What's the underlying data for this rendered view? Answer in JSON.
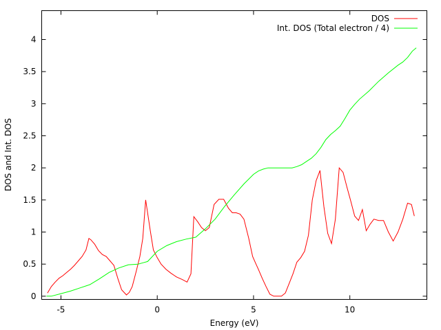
{
  "chart_data": {
    "type": "line",
    "xlabel": "Energy (eV)",
    "ylabel": "DOS and Int. DOS",
    "xlim": [
      -6,
      14
    ],
    "ylim": [
      -0.05,
      4.45
    ],
    "xticks": [
      -5,
      0,
      5,
      10
    ],
    "yticks": [
      0,
      0.5,
      1,
      1.5,
      2,
      2.5,
      3,
      3.5,
      4
    ],
    "xtick_labels": [
      "-5",
      "0",
      "5",
      "10"
    ],
    "ytick_labels": [
      "0",
      "0.5",
      "1",
      "1.5",
      "2",
      "2.5",
      "3",
      "3.5",
      "4"
    ],
    "grid": false,
    "legend_position": "top-right",
    "series": [
      {
        "name": "DOS",
        "color": "#ff0000",
        "x": [
          -5.7,
          -5.5,
          -5.3,
          -5.1,
          -4.9,
          -4.7,
          -4.5,
          -4.3,
          -4.1,
          -3.9,
          -3.7,
          -3.55,
          -3.45,
          -3.25,
          -3.05,
          -2.85,
          -2.65,
          -2.45,
          -2.25,
          -2.05,
          -1.85,
          -1.6,
          -1.45,
          -1.3,
          -1.1,
          -0.9,
          -0.75,
          -0.6,
          -0.55,
          -0.45,
          -0.35,
          -0.2,
          0.0,
          0.2,
          0.45,
          0.7,
          1.0,
          1.3,
          1.55,
          1.75,
          1.9,
          2.1,
          2.3,
          2.5,
          2.7,
          2.95,
          3.2,
          3.45,
          3.7,
          3.9,
          4.1,
          4.3,
          4.5,
          4.75,
          4.95,
          5.1,
          5.25,
          5.45,
          5.65,
          5.85,
          6.05,
          6.25,
          6.45,
          6.65,
          6.85,
          7.05,
          7.25,
          7.45,
          7.65,
          7.85,
          8.05,
          8.25,
          8.45,
          8.65,
          8.85,
          9.05,
          9.25,
          9.45,
          9.65,
          9.85,
          10.05,
          10.25,
          10.45,
          10.65,
          10.85,
          11.05,
          11.25,
          11.5,
          11.75,
          12.0,
          12.25,
          12.5,
          12.75,
          13.0,
          13.2,
          13.35
        ],
        "values": [
          0.05,
          0.15,
          0.22,
          0.28,
          0.32,
          0.37,
          0.42,
          0.48,
          0.55,
          0.62,
          0.72,
          0.9,
          0.88,
          0.81,
          0.71,
          0.65,
          0.62,
          0.55,
          0.48,
          0.28,
          0.1,
          0.02,
          0.06,
          0.15,
          0.38,
          0.62,
          0.9,
          1.5,
          1.4,
          1.2,
          1.0,
          0.72,
          0.6,
          0.5,
          0.42,
          0.36,
          0.3,
          0.26,
          0.22,
          0.35,
          1.24,
          1.16,
          1.07,
          1.02,
          1.07,
          1.43,
          1.51,
          1.51,
          1.37,
          1.3,
          1.3,
          1.28,
          1.2,
          0.9,
          0.62,
          0.52,
          0.42,
          0.28,
          0.15,
          0.03,
          0.0,
          0.0,
          0.0,
          0.05,
          0.2,
          0.35,
          0.53,
          0.6,
          0.7,
          0.95,
          1.5,
          1.8,
          1.96,
          1.4,
          0.98,
          0.82,
          1.2,
          2.0,
          1.93,
          1.7,
          1.48,
          1.25,
          1.18,
          1.35,
          1.02,
          1.12,
          1.2,
          1.18,
          1.18,
          1.0,
          0.86,
          1.0,
          1.2,
          1.45,
          1.43,
          1.25
        ]
      },
      {
        "name": "Int. DOS (Total electron / 4)",
        "color": "#00ff00",
        "x": [
          -5.75,
          -5.5,
          -5.0,
          -4.5,
          -4.0,
          -3.5,
          -3.0,
          -2.5,
          -2.0,
          -1.5,
          -1.0,
          -0.75,
          -0.5,
          -0.25,
          0.0,
          0.5,
          1.0,
          1.5,
          2.0,
          2.5,
          3.0,
          3.5,
          4.0,
          4.5,
          5.0,
          5.25,
          5.5,
          5.75,
          6.0,
          6.5,
          7.0,
          7.25,
          7.5,
          7.75,
          8.0,
          8.25,
          8.5,
          8.75,
          9.0,
          9.25,
          9.5,
          9.75,
          10.0,
          10.25,
          10.5,
          11.0,
          11.5,
          12.0,
          12.5,
          12.75,
          13.0,
          13.25,
          13.45
        ],
        "values": [
          0.0,
          0.0,
          0.04,
          0.08,
          0.13,
          0.18,
          0.27,
          0.37,
          0.44,
          0.49,
          0.5,
          0.52,
          0.54,
          0.62,
          0.7,
          0.79,
          0.85,
          0.89,
          0.92,
          1.05,
          1.2,
          1.4,
          1.58,
          1.75,
          1.9,
          1.95,
          1.98,
          2.0,
          2.0,
          2.0,
          2.0,
          2.02,
          2.05,
          2.1,
          2.15,
          2.22,
          2.32,
          2.44,
          2.52,
          2.58,
          2.65,
          2.77,
          2.9,
          2.99,
          3.07,
          3.2,
          3.35,
          3.48,
          3.6,
          3.65,
          3.72,
          3.82,
          3.87
        ]
      }
    ]
  }
}
